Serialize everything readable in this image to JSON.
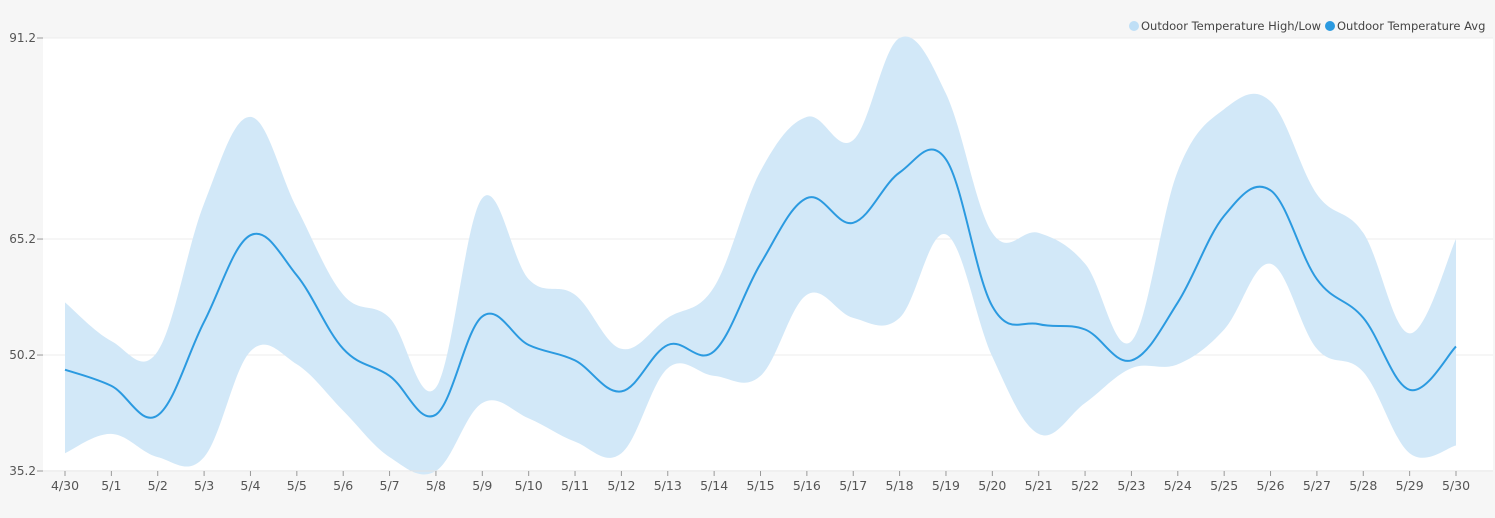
{
  "chart_data": {
    "type": "area",
    "title": "",
    "xlabel": "",
    "ylabel": "",
    "x": [
      "4/30",
      "5/1",
      "5/2",
      "5/3",
      "5/4",
      "5/5",
      "5/6",
      "5/7",
      "5/8",
      "5/9",
      "5/10",
      "5/11",
      "5/12",
      "5/13",
      "5/14",
      "5/15",
      "5/16",
      "5/17",
      "5/18",
      "5/19",
      "5/20",
      "5/21",
      "5/22",
      "5/23",
      "5/24",
      "5/25",
      "5/26",
      "5/27",
      "5/28",
      "5/29",
      "5/30"
    ],
    "yticks": [
      "35.2",
      "50.2",
      "65.2",
      "91.2"
    ],
    "ytick_values": [
      35.2,
      50.2,
      65.2,
      91.2
    ],
    "ylim": [
      35.2,
      91.2
    ],
    "legend_position": "top-right",
    "grid": true,
    "series": [
      {
        "name": "Outdoor Temperature High/Low",
        "kind": "range",
        "color": "#d2e8f8",
        "high": [
          57.0,
          52.0,
          50.7,
          69.8,
          81.0,
          69.2,
          58.0,
          55.0,
          46.0,
          70.5,
          60.0,
          58.0,
          51.0,
          55.0,
          59.0,
          74.0,
          81.0,
          78.0,
          91.2,
          84.0,
          66.0,
          66.0,
          62.0,
          52.0,
          74.0,
          82.0,
          83.0,
          71.0,
          66.0,
          53.0,
          65.2
        ],
        "low": [
          37.5,
          40.0,
          37.0,
          37.0,
          50.7,
          49.0,
          43.0,
          37.0,
          35.2,
          44.0,
          42.0,
          39.0,
          37.5,
          48.5,
          47.5,
          47.5,
          58.0,
          55.0,
          55.0,
          65.8,
          50.0,
          40.0,
          44.0,
          48.5,
          49.0,
          53.5,
          62.0,
          51.0,
          48.0,
          37.5,
          38.5
        ]
      },
      {
        "name": "Outdoor Temperature Avg",
        "kind": "line",
        "color": "#2b9ae0",
        "values": [
          48.3,
          46.2,
          42.4,
          54.5,
          65.7,
          60.5,
          51.0,
          47.5,
          42.5,
          55.2,
          51.5,
          49.5,
          45.5,
          51.5,
          50.7,
          62.0,
          70.5,
          67.3,
          73.8,
          75.5,
          56.5,
          54.2,
          53.5,
          49.5,
          57.0,
          68.2,
          71.5,
          60.0,
          55.0,
          45.7,
          51.3
        ]
      }
    ]
  }
}
